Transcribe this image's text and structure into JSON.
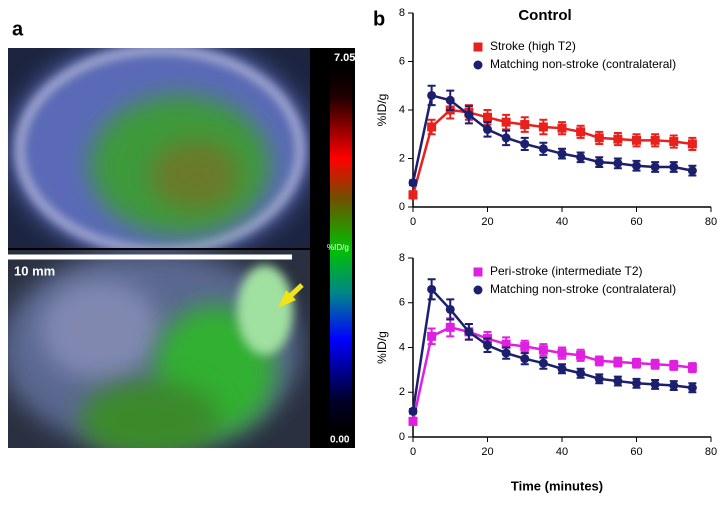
{
  "panel_a": {
    "label": "a",
    "scale_bar": "10 mm",
    "colorbar": {
      "max": "7.05",
      "unit": "%ID/g",
      "min": "0.00"
    }
  },
  "panel_b": {
    "label": "b"
  },
  "chart_data": [
    {
      "type": "line",
      "title": "Control",
      "ylabel": "%ID/g",
      "legend": "upper right",
      "x": [
        0,
        5,
        10,
        15,
        20,
        25,
        30,
        35,
        40,
        45,
        50,
        55,
        60,
        65,
        70,
        75
      ],
      "xlim": [
        0,
        80
      ],
      "xticks": [
        0,
        20,
        40,
        60,
        80
      ],
      "ylim": [
        0,
        8
      ],
      "yticks": [
        0,
        2,
        4,
        6,
        8
      ],
      "series": [
        {
          "name": "Stroke (high T2)",
          "color": "#e8211d",
          "marker": "square",
          "values": [
            0.5,
            3.3,
            4.0,
            3.9,
            3.7,
            3.5,
            3.4,
            3.3,
            3.25,
            3.1,
            2.85,
            2.8,
            2.75,
            2.75,
            2.7,
            2.6
          ],
          "errors": [
            0.15,
            0.3,
            0.35,
            0.3,
            0.3,
            0.3,
            0.3,
            0.3,
            0.25,
            0.25,
            0.25,
            0.25,
            0.25,
            0.25,
            0.25,
            0.25
          ]
        },
        {
          "name": "Matching non-stroke (contralateral)",
          "color": "#1c1f6e",
          "marker": "circle",
          "values": [
            1.0,
            4.6,
            4.4,
            3.8,
            3.2,
            2.85,
            2.6,
            2.4,
            2.2,
            2.05,
            1.85,
            1.8,
            1.7,
            1.65,
            1.65,
            1.5
          ],
          "errors": [
            0.1,
            0.4,
            0.4,
            0.35,
            0.3,
            0.3,
            0.25,
            0.25,
            0.2,
            0.2,
            0.2,
            0.2,
            0.2,
            0.2,
            0.2,
            0.2
          ]
        }
      ]
    },
    {
      "type": "line",
      "ylabel": "%ID/g",
      "xlabel": "Time (minutes)",
      "legend": "upper right",
      "x": [
        0,
        5,
        10,
        15,
        20,
        25,
        30,
        35,
        40,
        45,
        50,
        55,
        60,
        65,
        70,
        75
      ],
      "xlim": [
        0,
        80
      ],
      "xticks": [
        0,
        20,
        40,
        60,
        80
      ],
      "ylim": [
        0,
        8
      ],
      "yticks": [
        0,
        2,
        4,
        6,
        8
      ],
      "series": [
        {
          "name": "Peri-stroke (intermediate T2)",
          "color": "#e020e0",
          "marker": "square",
          "values": [
            0.7,
            4.5,
            4.9,
            4.7,
            4.4,
            4.15,
            4.05,
            3.9,
            3.75,
            3.65,
            3.4,
            3.35,
            3.3,
            3.25,
            3.2,
            3.1
          ],
          "errors": [
            0.15,
            0.35,
            0.4,
            0.35,
            0.3,
            0.3,
            0.25,
            0.25,
            0.25,
            0.25,
            0.2,
            0.2,
            0.2,
            0.2,
            0.2,
            0.2
          ]
        },
        {
          "name": "Matching non-stroke (contralateral)",
          "color": "#1c1f6e",
          "marker": "circle",
          "values": [
            1.15,
            6.6,
            5.7,
            4.7,
            4.1,
            3.75,
            3.5,
            3.3,
            3.05,
            2.85,
            2.6,
            2.5,
            2.4,
            2.35,
            2.3,
            2.2
          ],
          "errors": [
            0.1,
            0.45,
            0.45,
            0.35,
            0.3,
            0.25,
            0.25,
            0.25,
            0.2,
            0.2,
            0.2,
            0.2,
            0.2,
            0.2,
            0.2,
            0.2
          ]
        }
      ]
    }
  ]
}
